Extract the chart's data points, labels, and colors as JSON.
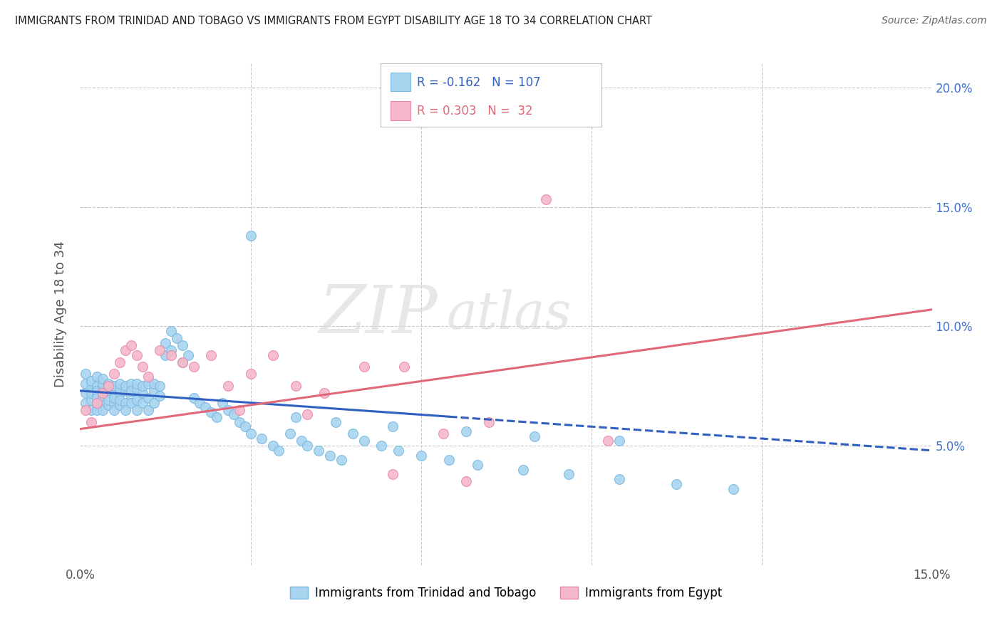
{
  "title": "IMMIGRANTS FROM TRINIDAD AND TOBAGO VS IMMIGRANTS FROM EGYPT DISABILITY AGE 18 TO 34 CORRELATION CHART",
  "source": "Source: ZipAtlas.com",
  "ylabel": "Disability Age 18 to 34",
  "xlim": [
    0.0,
    0.15
  ],
  "ylim": [
    0.0,
    0.21
  ],
  "yticks": [
    0.05,
    0.1,
    0.15,
    0.2
  ],
  "ytick_labels": [
    "5.0%",
    "10.0%",
    "15.0%",
    "20.0%"
  ],
  "tt_color": "#a8d4f0",
  "eg_color": "#f5b8cb",
  "tt_edge_color": "#7ab8e0",
  "eg_edge_color": "#e888a8",
  "tt_R": -0.162,
  "tt_N": 107,
  "eg_R": 0.303,
  "eg_N": 32,
  "tt_line_color": "#3060c0",
  "eg_line_color": "#e06878",
  "watermark_zip": "ZIP",
  "watermark_atlas": "atlas",
  "bg_color": "#ffffff",
  "grid_color": "#c8c8c8",
  "tt_line_y_start": 0.073,
  "tt_line_y_end": 0.048,
  "eg_line_y_start": 0.057,
  "eg_line_y_end": 0.107,
  "marker_size": 100,
  "tt_scatter_x": [
    0.001,
    0.001,
    0.001,
    0.001,
    0.002,
    0.002,
    0.002,
    0.002,
    0.002,
    0.003,
    0.003,
    0.003,
    0.003,
    0.003,
    0.003,
    0.003,
    0.004,
    0.004,
    0.004,
    0.004,
    0.004,
    0.004,
    0.005,
    0.005,
    0.005,
    0.005,
    0.005,
    0.006,
    0.006,
    0.006,
    0.006,
    0.006,
    0.007,
    0.007,
    0.007,
    0.007,
    0.007,
    0.008,
    0.008,
    0.008,
    0.008,
    0.009,
    0.009,
    0.009,
    0.009,
    0.01,
    0.01,
    0.01,
    0.01,
    0.011,
    0.011,
    0.011,
    0.012,
    0.012,
    0.012,
    0.013,
    0.013,
    0.013,
    0.014,
    0.014,
    0.015,
    0.015,
    0.016,
    0.016,
    0.017,
    0.018,
    0.018,
    0.019,
    0.02,
    0.021,
    0.022,
    0.023,
    0.024,
    0.025,
    0.026,
    0.027,
    0.028,
    0.029,
    0.03,
    0.032,
    0.034,
    0.035,
    0.037,
    0.039,
    0.04,
    0.042,
    0.044,
    0.046,
    0.048,
    0.05,
    0.053,
    0.056,
    0.06,
    0.065,
    0.07,
    0.078,
    0.086,
    0.095,
    0.105,
    0.115,
    0.03,
    0.038,
    0.045,
    0.055,
    0.068,
    0.08,
    0.095
  ],
  "tt_scatter_y": [
    0.072,
    0.076,
    0.068,
    0.08,
    0.074,
    0.069,
    0.077,
    0.072,
    0.065,
    0.071,
    0.075,
    0.068,
    0.073,
    0.079,
    0.065,
    0.07,
    0.074,
    0.068,
    0.076,
    0.071,
    0.065,
    0.078,
    0.072,
    0.067,
    0.074,
    0.069,
    0.076,
    0.073,
    0.068,
    0.075,
    0.07,
    0.065,
    0.072,
    0.067,
    0.074,
    0.069,
    0.076,
    0.073,
    0.068,
    0.075,
    0.065,
    0.071,
    0.076,
    0.068,
    0.073,
    0.074,
    0.069,
    0.076,
    0.065,
    0.072,
    0.068,
    0.075,
    0.07,
    0.076,
    0.065,
    0.073,
    0.068,
    0.076,
    0.071,
    0.075,
    0.093,
    0.088,
    0.098,
    0.09,
    0.095,
    0.085,
    0.092,
    0.088,
    0.07,
    0.068,
    0.066,
    0.064,
    0.062,
    0.068,
    0.065,
    0.063,
    0.06,
    0.058,
    0.055,
    0.053,
    0.05,
    0.048,
    0.055,
    0.052,
    0.05,
    0.048,
    0.046,
    0.044,
    0.055,
    0.052,
    0.05,
    0.048,
    0.046,
    0.044,
    0.042,
    0.04,
    0.038,
    0.036,
    0.034,
    0.032,
    0.138,
    0.062,
    0.06,
    0.058,
    0.056,
    0.054,
    0.052
  ],
  "eg_scatter_x": [
    0.001,
    0.002,
    0.003,
    0.004,
    0.005,
    0.006,
    0.007,
    0.008,
    0.009,
    0.01,
    0.011,
    0.012,
    0.014,
    0.016,
    0.018,
    0.02,
    0.023,
    0.026,
    0.03,
    0.034,
    0.038,
    0.043,
    0.05,
    0.057,
    0.064,
    0.072,
    0.082,
    0.093,
    0.028,
    0.04,
    0.055,
    0.068
  ],
  "eg_scatter_y": [
    0.065,
    0.06,
    0.068,
    0.072,
    0.075,
    0.08,
    0.085,
    0.09,
    0.092,
    0.088,
    0.083,
    0.079,
    0.09,
    0.088,
    0.085,
    0.083,
    0.088,
    0.075,
    0.08,
    0.088,
    0.075,
    0.072,
    0.083,
    0.083,
    0.055,
    0.06,
    0.153,
    0.052,
    0.065,
    0.063,
    0.038,
    0.035
  ]
}
